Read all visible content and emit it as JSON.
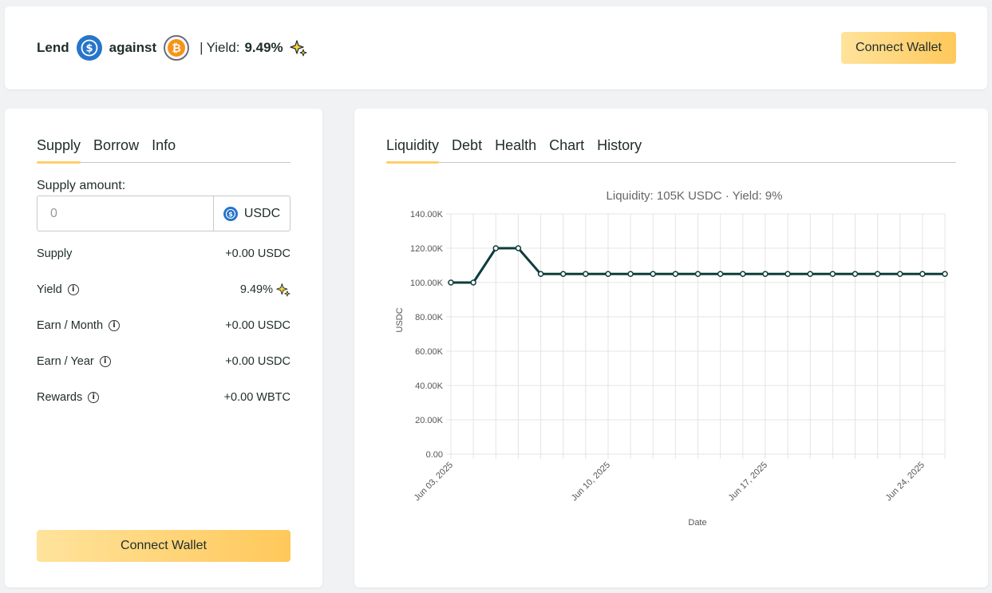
{
  "header": {
    "lend_label": "Lend",
    "lend_coin_icon": "usdc-coin-icon",
    "against_label": "against",
    "against_coin_icon": "btc-coin-icon",
    "separator": "|",
    "yield_label": "Yield:",
    "yield_value": "9.49%",
    "connect_wallet_label": "Connect Wallet"
  },
  "left_panel": {
    "tabs": [
      {
        "label": "Supply",
        "active": true
      },
      {
        "label": "Borrow",
        "active": false
      },
      {
        "label": "Info",
        "active": false
      }
    ],
    "supply_amount_label": "Supply amount:",
    "input_placeholder": "0",
    "input_unit": "USDC",
    "rows": [
      {
        "label": "Supply",
        "value": "+0.00 USDC",
        "info": false,
        "sparkle": false
      },
      {
        "label": "Yield",
        "value": "9.49%",
        "info": true,
        "sparkle": true
      },
      {
        "label": "Earn / Month",
        "value": "+0.00 USDC",
        "info": true,
        "sparkle": false
      },
      {
        "label": "Earn / Year",
        "value": "+0.00 USDC",
        "info": true,
        "sparkle": false
      },
      {
        "label": "Rewards",
        "value": "+0.00 WBTC",
        "info": true,
        "sparkle": false
      }
    ],
    "connect_wallet_label": "Connect Wallet"
  },
  "right_panel": {
    "tabs": [
      {
        "label": "Liquidity",
        "active": true
      },
      {
        "label": "Debt",
        "active": false
      },
      {
        "label": "Health",
        "active": false
      },
      {
        "label": "Chart",
        "active": false
      },
      {
        "label": "History",
        "active": false
      }
    ]
  },
  "colors": {
    "accent": "#ffcf6b",
    "line": "#0d3d3a",
    "usdc": "#2775ca",
    "btc": "#f7931a"
  },
  "chart_data": {
    "type": "line",
    "title": "Liquidity: 105K USDC · Yield: 9%",
    "xlabel": "Date",
    "ylabel": "USDC",
    "ylim": [
      0,
      140000
    ],
    "yticks": [
      "0.00",
      "20.00K",
      "40.00K",
      "60.00K",
      "80.00K",
      "100.00K",
      "120.00K",
      "140.00K"
    ],
    "xtick_labels": [
      {
        "index": 0,
        "label": "Jun 03, 2025"
      },
      {
        "index": 7,
        "label": "Jun 10, 2025"
      },
      {
        "index": 14,
        "label": "Jun 17, 2025"
      },
      {
        "index": 21,
        "label": "Jun 24, 2025"
      }
    ],
    "x": [
      "Jun 03, 2025",
      "Jun 04, 2025",
      "Jun 05, 2025",
      "Jun 06, 2025",
      "Jun 07, 2025",
      "Jun 08, 2025",
      "Jun 09, 2025",
      "Jun 10, 2025",
      "Jun 11, 2025",
      "Jun 12, 2025",
      "Jun 13, 2025",
      "Jun 14, 2025",
      "Jun 15, 2025",
      "Jun 16, 2025",
      "Jun 17, 2025",
      "Jun 18, 2025",
      "Jun 19, 2025",
      "Jun 20, 2025",
      "Jun 21, 2025",
      "Jun 22, 2025",
      "Jun 23, 2025",
      "Jun 24, 2025",
      "Jun 25, 2025"
    ],
    "values": [
      100000,
      100000,
      120000,
      120000,
      105000,
      105000,
      105000,
      105000,
      105000,
      105000,
      105000,
      105000,
      105000,
      105000,
      105000,
      105000,
      105000,
      105000,
      105000,
      105000,
      105000,
      105000,
      105000
    ],
    "grid": true
  }
}
